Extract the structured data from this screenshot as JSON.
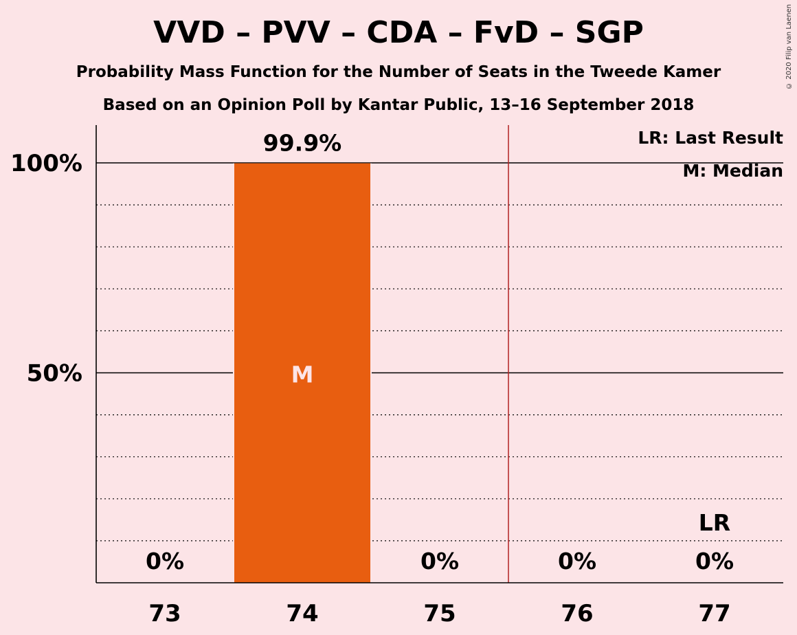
{
  "header": {
    "title": "VVD – PVV – CDA – FvD – SGP",
    "subtitle": "Probability Mass Function for the Number of Seats in the Tweede Kamer",
    "source": "Based on an Opinion Poll by Kantar Public, 13–16 September 2018"
  },
  "copyright": "© 2020 Filip van Laenen",
  "legend": {
    "lr": "LR: Last Result",
    "m": "M: Median",
    "placement": "top-right"
  },
  "colors": {
    "background": "#fce4e7",
    "bar": "#e85e10",
    "last_result_line": "#b22222",
    "median_text": "#fce4e7"
  },
  "chart_data": {
    "type": "bar",
    "categories": [
      "73",
      "74",
      "75",
      "76",
      "77"
    ],
    "values": [
      0,
      99.9,
      0,
      0,
      0
    ],
    "value_labels": [
      "0%",
      "99.9%",
      "0%",
      "0%",
      "0%"
    ],
    "ylim": [
      0,
      110
    ],
    "yticks": [
      {
        "value": 50,
        "label": "50%"
      },
      {
        "value": 100,
        "label": "100%"
      }
    ],
    "minor_gridlines": [
      10,
      20,
      30,
      40,
      60,
      70,
      80,
      90
    ],
    "median_category": "74",
    "median_label": "M",
    "last_result_category": "77",
    "last_result_label": "LR",
    "last_result_line_position": 75.5
  }
}
